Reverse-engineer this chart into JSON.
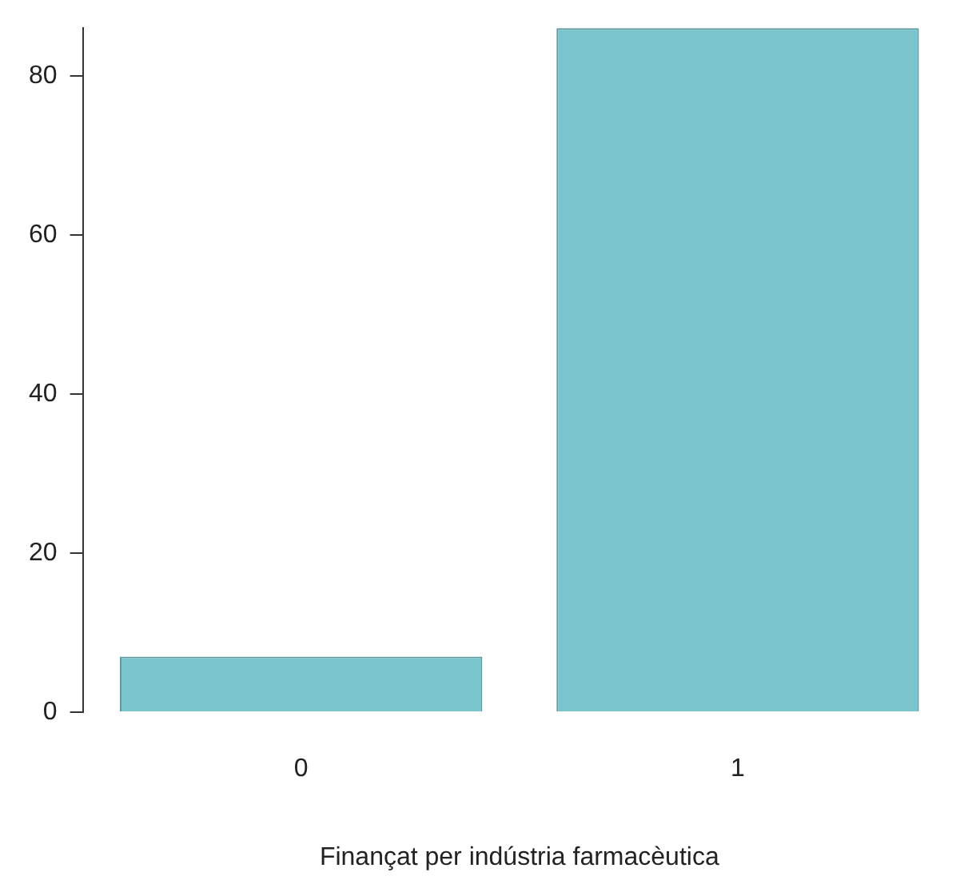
{
  "chart_data": {
    "type": "bar",
    "xlabel": "Finançat per indústria farmacèutica",
    "categories": [
      "0",
      "1"
    ],
    "values": [
      7,
      86
    ],
    "color": "#7ac4cc",
    "ylim": [
      0,
      86
    ],
    "yticks": [
      0,
      20,
      40,
      60,
      80
    ],
    "grid": false,
    "legend": false
  }
}
